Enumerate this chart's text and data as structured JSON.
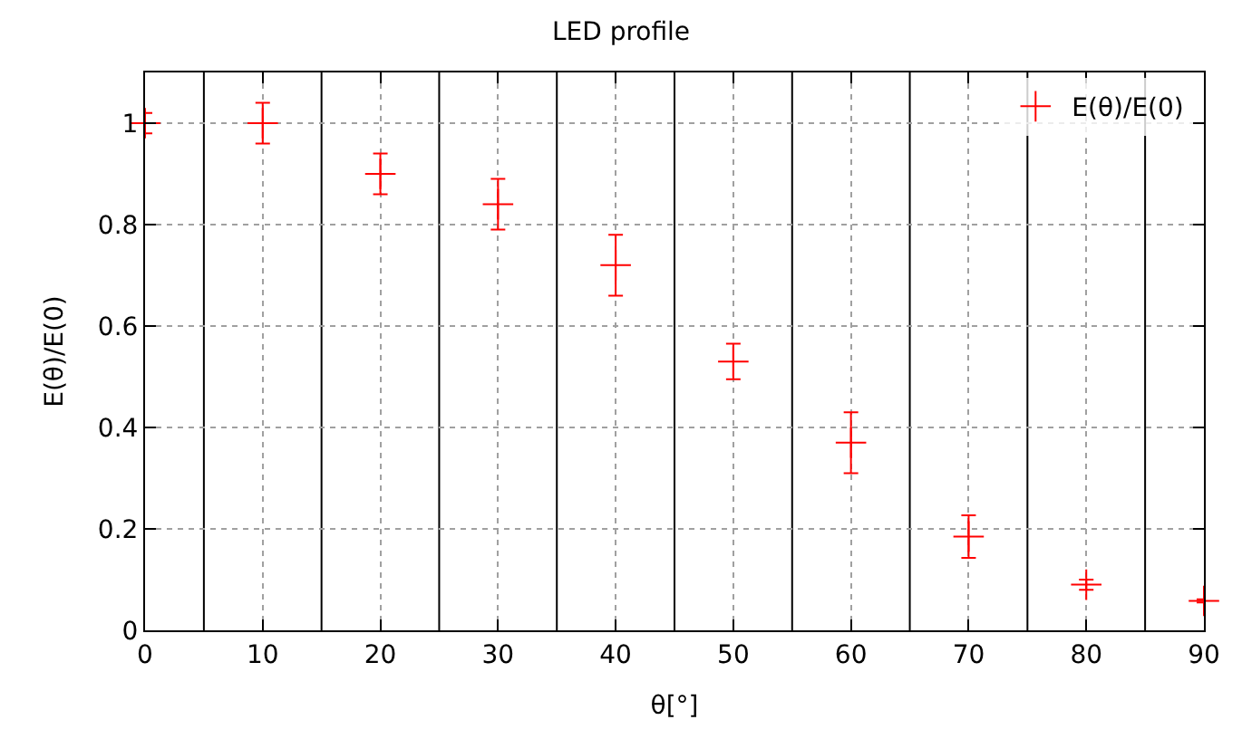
{
  "chart_data": {
    "type": "scatter",
    "title": "LED profile",
    "xlabel": "θ[°]",
    "ylabel": "E(θ)/E(0)",
    "x": [
      0,
      10,
      20,
      30,
      40,
      50,
      60,
      70,
      80,
      90
    ],
    "series": [
      {
        "name": "E(θ)/E(0)",
        "color": "#ff0000",
        "values": [
          1.0,
          1.0,
          0.9,
          0.84,
          0.72,
          0.53,
          0.37,
          0.185,
          0.09,
          0.058
        ],
        "errors": [
          0.02,
          0.04,
          0.04,
          0.05,
          0.06,
          0.035,
          0.06,
          0.042,
          0.01,
          0.003
        ]
      }
    ],
    "xlim": [
      0,
      90
    ],
    "xticks": [
      0,
      10,
      20,
      30,
      40,
      50,
      60,
      70,
      80,
      90
    ],
    "ylim": [
      0,
      1.1
    ],
    "yticks": [
      0,
      0.2,
      0.4,
      0.6,
      0.8,
      1
    ],
    "ref_lines": [
      {
        "axis": "x",
        "value": 5,
        "color": "#000000"
      },
      {
        "axis": "x",
        "value": 15,
        "color": "#000000"
      },
      {
        "axis": "x",
        "value": 25,
        "color": "#000000"
      },
      {
        "axis": "x",
        "value": 35,
        "color": "#000000"
      },
      {
        "axis": "x",
        "value": 45,
        "color": "#000000"
      },
      {
        "axis": "x",
        "value": 55,
        "color": "#000000"
      },
      {
        "axis": "x",
        "value": 65,
        "color": "#000000"
      },
      {
        "axis": "x",
        "value": 75,
        "color": "#000000"
      },
      {
        "axis": "x",
        "value": 85,
        "color": "#000000"
      }
    ],
    "grid": true,
    "legend": "top right",
    "marker": "cross"
  }
}
